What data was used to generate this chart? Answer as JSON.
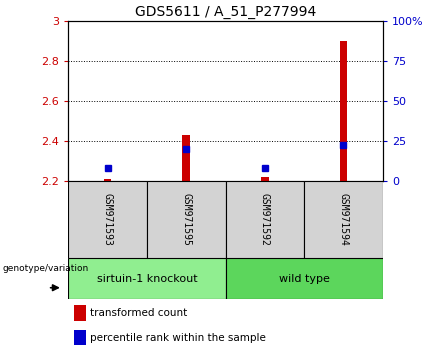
{
  "title": "GDS5611 / A_51_P277994",
  "samples": [
    "GSM971593",
    "GSM971595",
    "GSM971592",
    "GSM971594"
  ],
  "group_labels": [
    "sirtuin-1 knockout",
    "wild type"
  ],
  "group_ranges": [
    [
      0,
      2
    ],
    [
      2,
      4
    ]
  ],
  "group_color_light": "#90EE90",
  "group_color_dark": "#5CD65C",
  "transformed_counts": [
    2.21,
    2.43,
    2.22,
    2.9
  ],
  "percentile_ranks": [
    8,
    20,
    8,
    22
  ],
  "ylim_left": [
    2.2,
    3.0
  ],
  "ylim_right": [
    0,
    100
  ],
  "yticks_left": [
    2.2,
    2.4,
    2.6,
    2.8,
    3.0
  ],
  "ytick_labels_left": [
    "2.2",
    "2.4",
    "2.6",
    "2.8",
    "3"
  ],
  "yticks_right": [
    0,
    25,
    50,
    75,
    100
  ],
  "ytick_labels_right": [
    "0",
    "25",
    "50",
    "75",
    "100%"
  ],
  "hgrid_values": [
    2.4,
    2.6,
    2.8
  ],
  "bar_color": "#CC0000",
  "dot_color": "#0000CC",
  "bg_sample": "#D3D3D3",
  "legend_red_label": "transformed count",
  "legend_blue_label": "percentile rank within the sample",
  "genotype_label": "genotype/variation",
  "bar_width": 0.1,
  "title_fontsize": 10,
  "tick_fontsize": 8,
  "sample_fontsize": 7,
  "legend_fontsize": 7.5,
  "group_fontsize": 8
}
